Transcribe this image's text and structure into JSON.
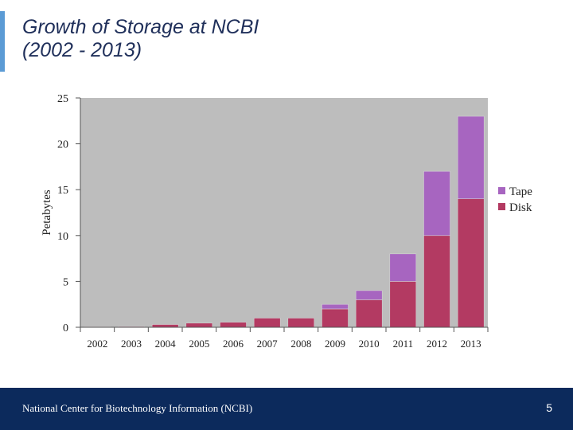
{
  "slide": {
    "title_line1": "Growth of Storage at NCBI",
    "title_line2": "(2002 - 2013)",
    "footer_text": "National Center for Biotechnology Information (NCBI)",
    "page_number": "5"
  },
  "colors": {
    "disk": "#b33a62",
    "tape": "#a765c0",
    "plot_bg": "#bdbdbd",
    "footer_bg": "#0c2a5c",
    "title": "#1f2f5a"
  },
  "chart_data": {
    "type": "bar",
    "stacked": true,
    "title": "Growth of Storage at NCBI (2002 - 2013)",
    "xlabel": "",
    "ylabel": "Petabytes",
    "ylim": [
      0,
      25
    ],
    "yticks": [
      "0",
      "5",
      "10",
      "15",
      "20",
      "25"
    ],
    "ytick_values": [
      0,
      5,
      10,
      15,
      20,
      25
    ],
    "categories": [
      "2002",
      "2003",
      "2004",
      "2005",
      "2006",
      "2007",
      "2008",
      "2009",
      "2010",
      "2011",
      "2012",
      "2013"
    ],
    "series": [
      {
        "name": "Disk",
        "values": [
          0.05,
          0.08,
          0.3,
          0.45,
          0.55,
          1.0,
          1.0,
          2.0,
          3.0,
          5.0,
          10.0,
          14.0
        ]
      },
      {
        "name": "Tape",
        "values": [
          0,
          0,
          0,
          0,
          0,
          0,
          0,
          0.5,
          1.0,
          3.0,
          7.0,
          9.0
        ]
      }
    ],
    "legend": [
      "Tape",
      "Disk"
    ],
    "legend_position": "right"
  }
}
